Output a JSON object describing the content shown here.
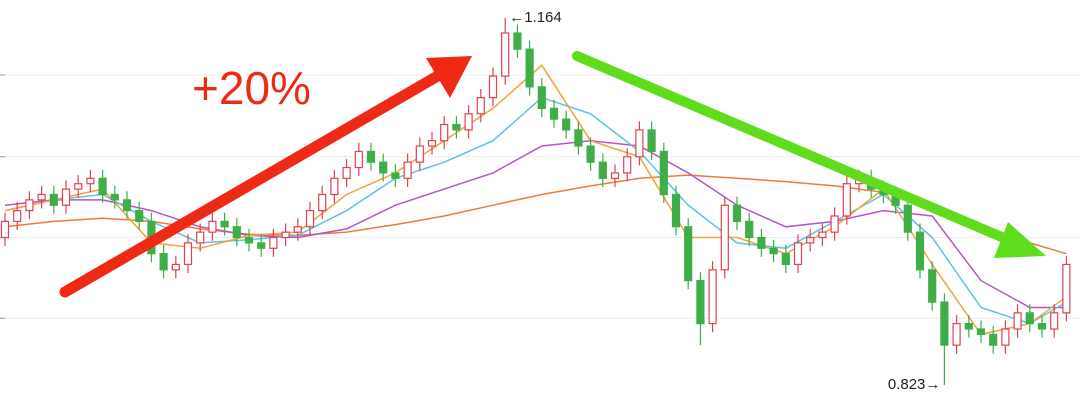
{
  "chart_data": {
    "type": "candlestick",
    "headline": "+20%",
    "ylim": [
      0.8081,
      1.1807
    ],
    "grid_lines": [
      1.111,
      1.035,
      0.96,
      0.885
    ],
    "up_color": "#e0424f",
    "down_color": "#3fae49",
    "open": [
      0.96,
      0.975,
      0.985,
      0.995,
      1.0,
      0.99,
      1.005,
      1.01,
      1.015,
      1.0,
      0.995,
      0.985,
      0.975,
      0.945,
      0.93,
      0.935,
      0.955,
      0.965,
      0.975,
      0.97,
      0.96,
      0.955,
      0.95,
      0.96,
      0.965,
      0.97,
      0.985,
      1.0,
      1.015,
      1.025,
      1.04,
      1.03,
      1.02,
      1.015,
      1.03,
      1.045,
      1.05,
      1.065,
      1.06,
      1.075,
      1.09,
      1.11,
      1.15,
      1.135,
      1.1,
      1.08,
      1.07,
      1.06,
      1.045,
      1.03,
      1.015,
      1.02,
      1.035,
      1.06,
      1.04,
      1.0,
      0.97,
      0.92,
      0.88,
      0.93,
      0.99,
      0.975,
      0.96,
      0.95,
      0.945,
      0.935,
      0.955,
      0.96,
      0.965,
      0.98,
      1.01,
      1.015,
      1.005,
      1.0,
      0.99,
      0.965,
      0.93,
      0.9,
      0.86,
      0.88,
      0.875,
      0.87,
      0.86,
      0.875,
      0.89,
      0.88,
      0.875,
      0.89
    ],
    "high": [
      0.983,
      0.993,
      1.003,
      1.008,
      1.008,
      1.013,
      1.018,
      1.023,
      1.023,
      1.008,
      1.003,
      0.993,
      0.983,
      0.953,
      0.943,
      0.963,
      0.973,
      0.983,
      0.983,
      0.978,
      0.968,
      0.963,
      0.968,
      0.973,
      0.978,
      0.993,
      1.008,
      1.023,
      1.033,
      1.048,
      1.048,
      1.038,
      1.028,
      1.038,
      1.053,
      1.058,
      1.073,
      1.073,
      1.083,
      1.098,
      1.118,
      1.164,
      1.158,
      1.143,
      1.108,
      1.088,
      1.078,
      1.068,
      1.053,
      1.038,
      1.028,
      1.043,
      1.068,
      1.068,
      1.048,
      1.008,
      0.978,
      0.928,
      0.938,
      0.998,
      0.998,
      0.983,
      0.968,
      0.958,
      0.953,
      0.963,
      0.968,
      0.973,
      0.988,
      1.018,
      1.023,
      1.023,
      1.013,
      1.008,
      0.998,
      0.973,
      0.938,
      0.908,
      0.888,
      0.888,
      0.883,
      0.878,
      0.883,
      0.898,
      0.898,
      0.888,
      0.898,
      0.943
    ],
    "low": [
      0.952,
      0.967,
      0.977,
      0.987,
      0.982,
      0.982,
      0.997,
      1.002,
      0.992,
      0.987,
      0.977,
      0.967,
      0.937,
      0.922,
      0.922,
      0.927,
      0.947,
      0.957,
      0.962,
      0.952,
      0.947,
      0.942,
      0.942,
      0.952,
      0.957,
      0.962,
      0.977,
      0.992,
      1.007,
      1.017,
      1.022,
      1.012,
      1.007,
      1.007,
      1.022,
      1.037,
      1.042,
      1.052,
      1.052,
      1.067,
      1.082,
      1.102,
      1.127,
      1.092,
      1.072,
      1.062,
      1.052,
      1.037,
      1.022,
      1.007,
      1.007,
      1.012,
      1.027,
      1.032,
      0.992,
      0.962,
      0.912,
      0.86,
      0.872,
      0.922,
      0.967,
      0.952,
      0.942,
      0.937,
      0.927,
      0.927,
      0.947,
      0.952,
      0.957,
      0.972,
      1.002,
      0.997,
      0.992,
      0.982,
      0.957,
      0.922,
      0.892,
      0.823,
      0.852,
      0.867,
      0.862,
      0.852,
      0.852,
      0.867,
      0.872,
      0.867,
      0.867,
      0.882
    ],
    "close": [
      0.975,
      0.985,
      0.995,
      1.0,
      0.99,
      1.005,
      1.01,
      1.015,
      1.0,
      0.995,
      0.985,
      0.975,
      0.945,
      0.93,
      0.935,
      0.955,
      0.965,
      0.975,
      0.97,
      0.96,
      0.955,
      0.95,
      0.96,
      0.965,
      0.97,
      0.985,
      1.0,
      1.015,
      1.025,
      1.04,
      1.03,
      1.02,
      1.015,
      1.03,
      1.045,
      1.05,
      1.065,
      1.06,
      1.075,
      1.09,
      1.11,
      1.15,
      1.135,
      1.1,
      1.08,
      1.07,
      1.06,
      1.045,
      1.03,
      1.015,
      1.02,
      1.035,
      1.06,
      1.04,
      1.0,
      0.97,
      0.92,
      0.88,
      0.93,
      0.99,
      0.975,
      0.96,
      0.95,
      0.945,
      0.935,
      0.955,
      0.96,
      0.965,
      0.98,
      1.01,
      1.015,
      1.005,
      1.0,
      0.99,
      0.965,
      0.93,
      0.9,
      0.86,
      0.88,
      0.875,
      0.87,
      0.86,
      0.875,
      0.89,
      0.88,
      0.875,
      0.89,
      0.935
    ],
    "ma_x": [
      0,
      4,
      8,
      12,
      16,
      20,
      24,
      28,
      32,
      36,
      40,
      44,
      48,
      52,
      56,
      60,
      64,
      68,
      72,
      76,
      80,
      84,
      87
    ],
    "ma": [
      {
        "color": "#f07a3a",
        "values": [
          0.97,
          0.975,
          0.978,
          0.975,
          0.968,
          0.963,
          0.962,
          0.965,
          0.972,
          0.98,
          0.99,
          1.0,
          1.008,
          1.015,
          1.018,
          1.015,
          1.012,
          1.008,
          1.002,
          0.99,
          0.97,
          0.955,
          0.945
        ]
      },
      {
        "color": "#b555c8",
        "values": [
          0.99,
          0.995,
          0.995,
          0.985,
          0.97,
          0.962,
          0.96,
          0.968,
          0.99,
          1.005,
          1.02,
          1.045,
          1.05,
          1.045,
          1.02,
          0.99,
          0.97,
          0.975,
          0.985,
          0.98,
          0.92,
          0.895,
          0.895
        ]
      },
      {
        "color": "#5bc3e0",
        "values": [
          0.985,
          0.995,
          1.0,
          0.975,
          0.955,
          0.958,
          0.962,
          0.985,
          1.015,
          1.03,
          1.05,
          1.09,
          1.075,
          1.04,
          0.99,
          0.955,
          0.95,
          0.975,
          1.0,
          0.96,
          0.895,
          0.88,
          0.9
        ]
      },
      {
        "color": "#f2a23c",
        "values": [
          0.985,
          0.995,
          1.005,
          0.955,
          0.95,
          0.962,
          0.965,
          1.0,
          1.02,
          1.05,
          1.08,
          1.12,
          1.05,
          1.035,
          0.96,
          0.96,
          0.945,
          0.97,
          1.005,
          0.935,
          0.87,
          0.88,
          0.905
        ]
      }
    ],
    "annotations": [
      {
        "label": "←1.164",
        "value": 1.164,
        "side": "right"
      },
      {
        "label": "0.823→",
        "value": 0.823,
        "side": "left"
      }
    ]
  }
}
